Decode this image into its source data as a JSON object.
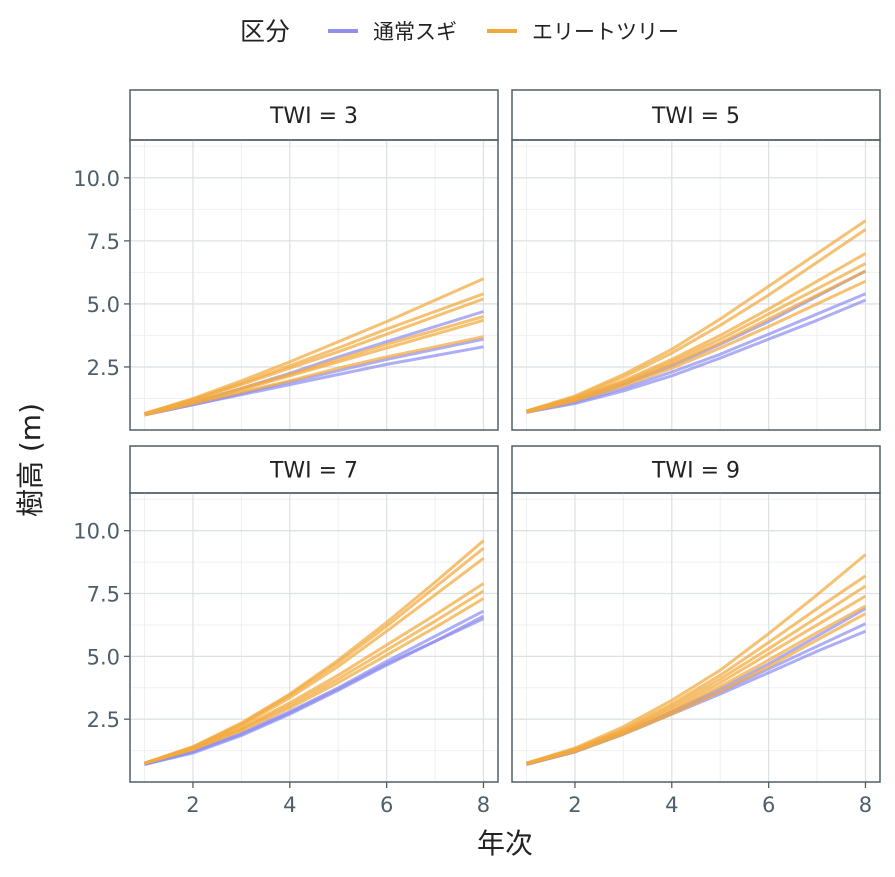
{
  "chart_data": {
    "type": "line",
    "facet_by": "TWI",
    "xlabel": "年次",
    "ylabel": "樹高 (m)",
    "x_ticks": [
      2,
      4,
      6,
      8
    ],
    "y_ticks": [
      2.5,
      5.0,
      7.5,
      10.0
    ],
    "y_tick_labels": [
      "2.5",
      "5.0",
      "7.5",
      "10.0"
    ],
    "xlim": [
      0.7,
      8.3
    ],
    "ylim": [
      0.0,
      11.5
    ],
    "grid": true,
    "legend": {
      "title": "区分",
      "position": "top",
      "entries": [
        {
          "label": "通常スギ",
          "color": "#8f8ff0"
        },
        {
          "label": "エリートツリー",
          "color": "#f2a93b"
        }
      ]
    },
    "x": [
      1,
      2,
      3,
      4,
      5,
      6,
      7,
      8
    ],
    "panels": [
      {
        "strip": "TWI = 3",
        "lines": [
          {
            "group": "通常スギ",
            "values": [
              0.6,
              1.1,
              1.65,
              2.25,
              2.9,
              3.5,
              4.1,
              4.7
            ]
          },
          {
            "group": "通常スギ",
            "values": [
              0.6,
              1.0,
              1.45,
              1.9,
              2.35,
              2.8,
              3.2,
              3.6
            ]
          },
          {
            "group": "通常スギ",
            "values": [
              0.6,
              1.0,
              1.4,
              1.8,
              2.2,
              2.6,
              2.95,
              3.3
            ]
          },
          {
            "group": "エリートツリー",
            "values": [
              0.65,
              1.2,
              1.85,
              2.55,
              3.25,
              4.0,
              4.7,
              5.4
            ]
          },
          {
            "group": "エリートツリー",
            "values": [
              0.65,
              1.25,
              1.95,
              2.7,
              3.5,
              4.3,
              5.15,
              6.0
            ]
          },
          {
            "group": "エリートツリー",
            "values": [
              0.65,
              1.2,
              1.8,
              2.45,
              3.1,
              3.8,
              4.5,
              5.2
            ]
          },
          {
            "group": "エリートツリー",
            "values": [
              0.6,
              1.1,
              1.65,
              2.2,
              2.8,
              3.4,
              3.95,
              4.5
            ]
          },
          {
            "group": "エリートツリー",
            "values": [
              0.6,
              1.1,
              1.6,
              2.15,
              2.7,
              3.25,
              3.8,
              4.35
            ]
          },
          {
            "group": "エリートツリー",
            "values": [
              0.6,
              1.05,
              1.5,
              1.95,
              2.45,
              2.9,
              3.3,
              3.7
            ]
          }
        ]
      },
      {
        "strip": "TWI = 5",
        "lines": [
          {
            "group": "通常スギ",
            "values": [
              0.7,
              1.1,
              1.65,
              2.3,
              3.0,
              3.8,
              4.6,
              5.4
            ]
          },
          {
            "group": "通常スギ",
            "values": [
              0.7,
              1.05,
              1.55,
              2.15,
              2.85,
              3.6,
              4.35,
              5.15
            ]
          },
          {
            "group": "通常スギ",
            "values": [
              0.7,
              1.15,
              1.8,
              2.55,
              3.4,
              4.3,
              5.3,
              6.3
            ]
          },
          {
            "group": "エリートツリー",
            "values": [
              0.75,
              1.35,
              2.2,
              3.2,
              4.4,
              5.7,
              7.0,
              8.3
            ]
          },
          {
            "group": "エリートツリー",
            "values": [
              0.75,
              1.3,
              2.1,
              3.05,
              4.15,
              5.35,
              6.65,
              7.95
            ]
          },
          {
            "group": "エリートツリー",
            "values": [
              0.75,
              1.25,
              1.95,
              2.8,
              3.75,
              4.8,
              5.9,
              7.0
            ]
          },
          {
            "group": "エリートツリー",
            "values": [
              0.75,
              1.25,
              1.9,
              2.7,
              3.6,
              4.6,
              5.6,
              6.6
            ]
          },
          {
            "group": "エリートツリー",
            "values": [
              0.7,
              1.2,
              1.85,
              2.6,
              3.45,
              4.4,
              5.35,
              6.3
            ]
          },
          {
            "group": "エリートツリー",
            "values": [
              0.7,
              1.15,
              1.75,
              2.45,
              3.25,
              4.1,
              5.0,
              5.9
            ]
          }
        ]
      },
      {
        "strip": "TWI = 7",
        "lines": [
          {
            "group": "通常スギ",
            "values": [
              0.7,
              1.2,
              1.9,
              2.75,
              3.7,
              4.7,
              5.6,
              6.5
            ]
          },
          {
            "group": "通常スギ",
            "values": [
              0.7,
              1.2,
              1.95,
              2.8,
              3.75,
              4.8,
              5.8,
              6.8
            ]
          },
          {
            "group": "通常スギ",
            "values": [
              0.7,
              1.15,
              1.85,
              2.7,
              3.65,
              4.65,
              5.6,
              6.6
            ]
          },
          {
            "group": "エリートツリー",
            "values": [
              0.75,
              1.4,
              2.35,
              3.5,
              4.85,
              6.35,
              7.95,
              9.6
            ]
          },
          {
            "group": "エリートツリー",
            "values": [
              0.75,
              1.4,
              2.3,
              3.45,
              4.75,
              6.2,
              7.75,
              9.3
            ]
          },
          {
            "group": "エリートツリー",
            "values": [
              0.75,
              1.35,
              2.25,
              3.35,
              4.6,
              6.0,
              7.45,
              8.9
            ]
          },
          {
            "group": "エリートツリー",
            "values": [
              0.75,
              1.35,
              2.15,
              3.15,
              4.25,
              5.45,
              6.65,
              7.9
            ]
          },
          {
            "group": "エリートツリー",
            "values": [
              0.75,
              1.3,
              2.1,
              3.05,
              4.1,
              5.25,
              6.4,
              7.6
            ]
          },
          {
            "group": "エリートツリー",
            "values": [
              0.75,
              1.3,
              2.05,
              2.95,
              3.95,
              5.05,
              6.15,
              7.3
            ]
          }
        ]
      },
      {
        "strip": "TWI = 9",
        "lines": [
          {
            "group": "通常スギ",
            "values": [
              0.7,
              1.2,
              1.9,
              2.7,
              3.5,
              4.35,
              5.2,
              6.0
            ]
          },
          {
            "group": "通常スギ",
            "values": [
              0.7,
              1.2,
              1.95,
              2.75,
              3.6,
              4.5,
              5.4,
              6.3
            ]
          },
          {
            "group": "通常スギ",
            "values": [
              0.7,
              1.2,
              1.95,
              2.8,
              3.7,
              4.7,
              5.8,
              6.9
            ]
          },
          {
            "group": "エリートツリー",
            "values": [
              0.75,
              1.35,
              2.2,
              3.25,
              4.45,
              5.9,
              7.45,
              9.05
            ]
          },
          {
            "group": "エリートツリー",
            "values": [
              0.75,
              1.3,
              2.1,
              3.1,
              4.25,
              5.55,
              6.9,
              8.2
            ]
          },
          {
            "group": "エリートツリー",
            "values": [
              0.75,
              1.3,
              2.05,
              3.0,
              4.1,
              5.3,
              6.55,
              7.8
            ]
          },
          {
            "group": "エリートツリー",
            "values": [
              0.75,
              1.25,
              2.0,
              2.9,
              3.95,
              5.1,
              6.25,
              7.4
            ]
          },
          {
            "group": "エリートツリー",
            "values": [
              0.75,
              1.25,
              1.95,
              2.8,
              3.8,
              4.85,
              5.95,
              7.0
            ]
          },
          {
            "group": "エリートツリー",
            "values": [
              0.7,
              1.2,
              1.9,
              2.7,
              3.6,
              4.6,
              5.65,
              6.7
            ]
          }
        ]
      }
    ]
  }
}
